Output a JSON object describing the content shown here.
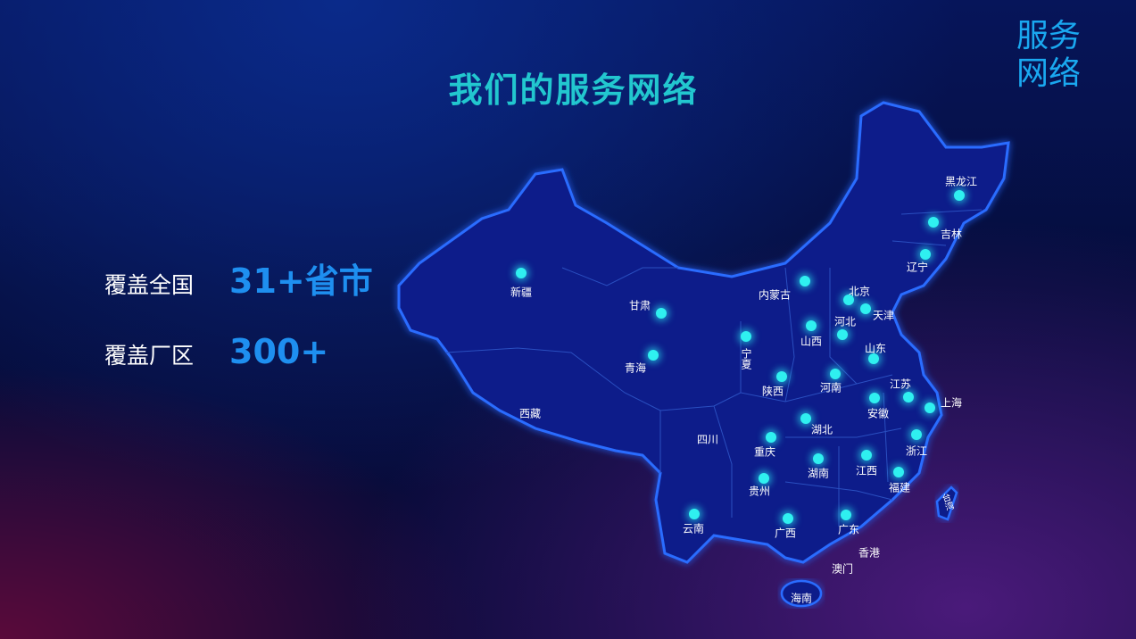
{
  "corner_title": "服务网络",
  "title": "我们的服务网络",
  "stats": [
    {
      "label": "覆盖全国",
      "value": "31+省市"
    },
    {
      "label": "覆盖厂区",
      "value": "300+"
    }
  ],
  "colors": {
    "title": "#22c7cf",
    "accent": "#1e8ff0",
    "dot": "#2ff0f0",
    "map_fill": "#0c1f8a",
    "map_border": "#2a6cff"
  },
  "map": {
    "regions": [
      {
        "name": "新疆",
        "dot": true
      },
      {
        "name": "甘肃",
        "dot": true
      },
      {
        "name": "青海",
        "dot": true
      },
      {
        "name": "西藏",
        "dot": false
      },
      {
        "name": "内蒙古",
        "dot": true
      },
      {
        "name": "宁夏",
        "dot": true
      },
      {
        "name": "陕西",
        "dot": true
      },
      {
        "name": "山西",
        "dot": true
      },
      {
        "name": "北京",
        "dot": true
      },
      {
        "name": "天津",
        "dot": true
      },
      {
        "name": "河北",
        "dot": true
      },
      {
        "name": "山东",
        "dot": true
      },
      {
        "name": "河南",
        "dot": true
      },
      {
        "name": "江苏",
        "dot": true
      },
      {
        "name": "上海",
        "dot": true
      },
      {
        "name": "安徽",
        "dot": true
      },
      {
        "name": "湖北",
        "dot": true
      },
      {
        "name": "四川",
        "dot": false
      },
      {
        "name": "重庆",
        "dot": true
      },
      {
        "name": "湖南",
        "dot": true
      },
      {
        "name": "江西",
        "dot": true
      },
      {
        "name": "浙江",
        "dot": true
      },
      {
        "name": "福建",
        "dot": true
      },
      {
        "name": "贵州",
        "dot": true
      },
      {
        "name": "云南",
        "dot": true
      },
      {
        "name": "广西",
        "dot": true
      },
      {
        "name": "广东",
        "dot": true
      },
      {
        "name": "香港",
        "dot": false
      },
      {
        "name": "澳门",
        "dot": false
      },
      {
        "name": "海南",
        "dot": false
      },
      {
        "name": "黑龙江",
        "dot": true
      },
      {
        "name": "吉林",
        "dot": true
      },
      {
        "name": "辽宁",
        "dot": true
      },
      {
        "name": "台湾",
        "dot": false
      }
    ]
  }
}
